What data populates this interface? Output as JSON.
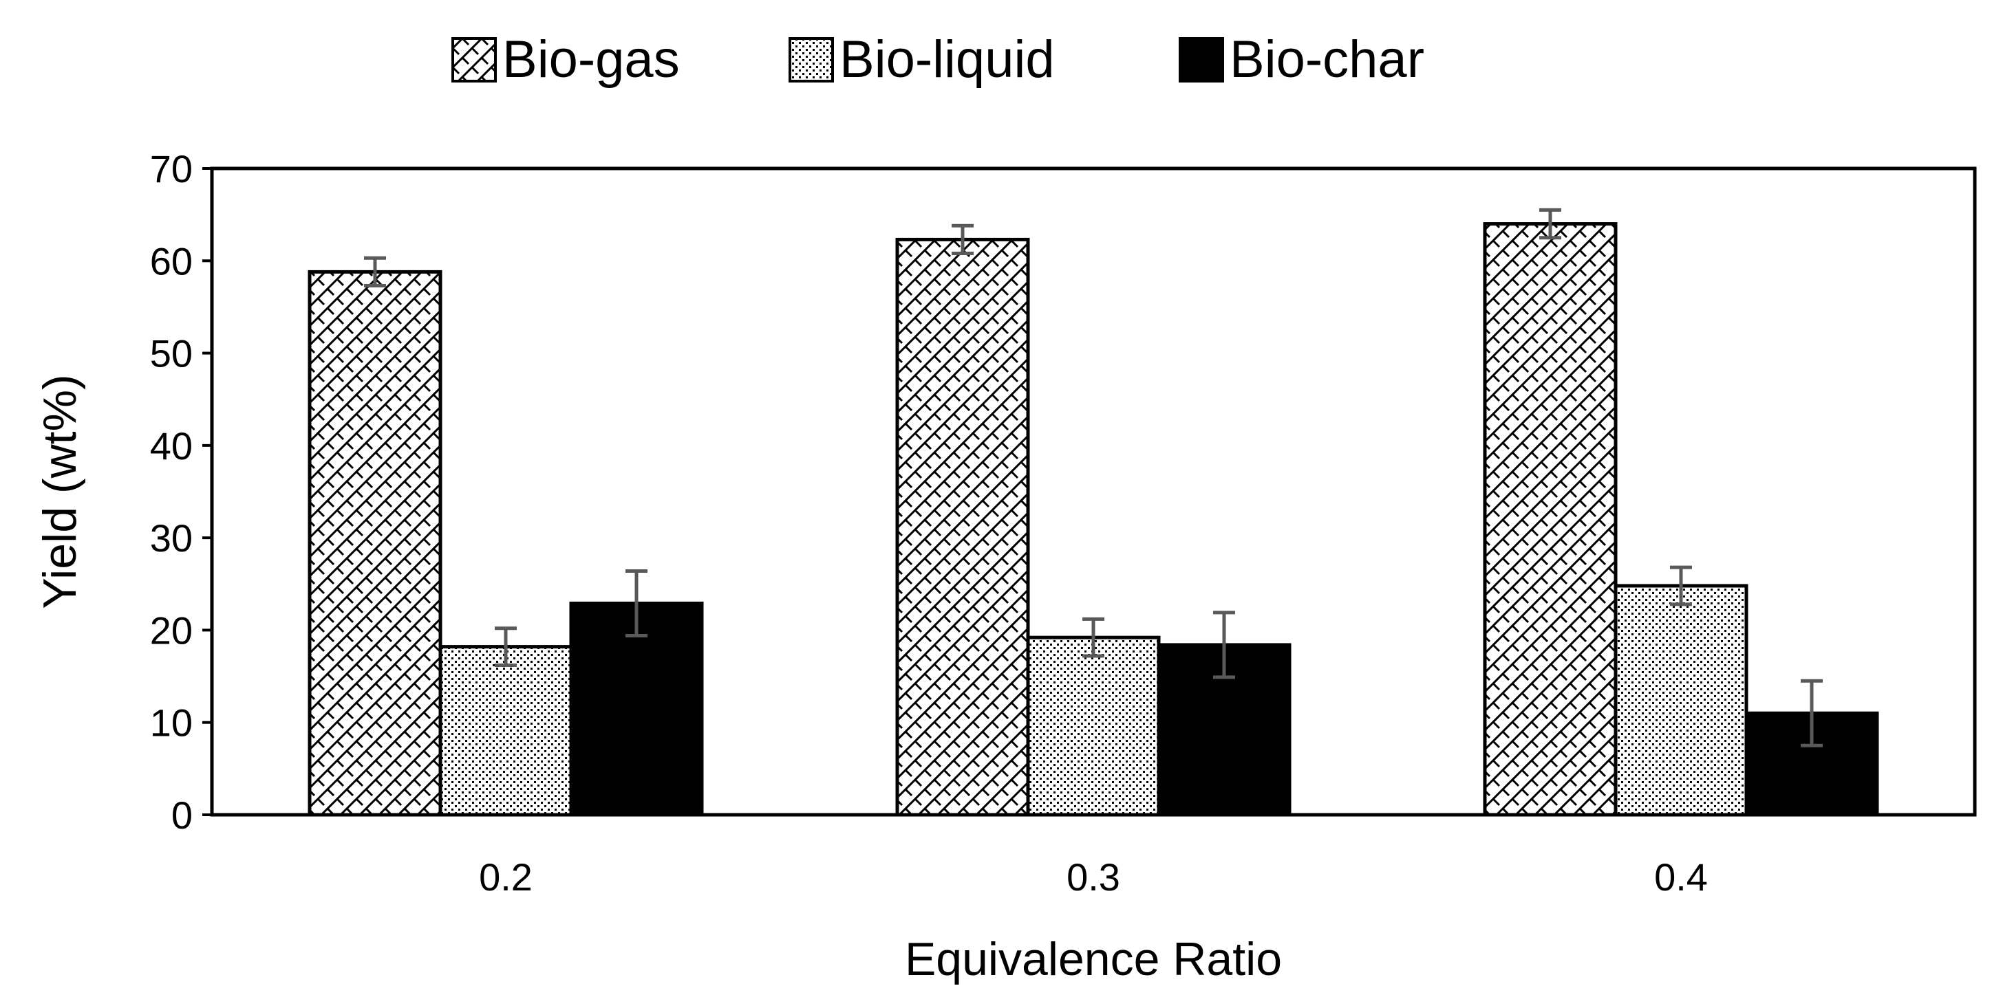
{
  "chart_data": {
    "type": "bar",
    "title": "",
    "xlabel": "Equivalence Ratio",
    "ylabel": "Yield (wt%)",
    "categories": [
      "0.2",
      "0.3",
      "0.4"
    ],
    "ylim": [
      0,
      70
    ],
    "yticks": [
      0,
      10,
      20,
      30,
      40,
      50,
      60,
      70
    ],
    "grid": false,
    "legend_position": "top",
    "series": [
      {
        "name": "Bio-gas",
        "pattern": "hatch",
        "values": [
          58.8,
          62.3,
          64.0
        ],
        "errors": [
          1.5,
          1.5,
          1.5
        ]
      },
      {
        "name": "Bio-liquid",
        "pattern": "dots",
        "values": [
          18.2,
          19.2,
          24.8
        ],
        "errors": [
          2.0,
          2.0,
          2.0
        ]
      },
      {
        "name": "Bio-char",
        "pattern": "solid",
        "values": [
          22.9,
          18.4,
          11.0
        ],
        "errors": [
          3.5,
          3.5,
          3.5
        ]
      }
    ],
    "colors": {
      "bar_edge": "#000000",
      "solid_fill": "#000000",
      "error_bar": "#595959",
      "background": "#ffffff"
    }
  }
}
